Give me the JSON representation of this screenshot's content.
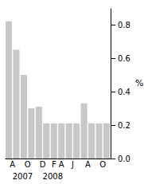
{
  "chart_data": {
    "type": "bar",
    "categories": [
      "A",
      null,
      "O",
      null,
      "D",
      null,
      "F",
      "A",
      "J",
      null,
      "A",
      null,
      "O",
      null
    ],
    "values": [
      0.82,
      0.65,
      0.5,
      0.3,
      0.31,
      0.21,
      0.21,
      0.21,
      0.21,
      0.21,
      0.33,
      0.21,
      0.21,
      0.21
    ],
    "color": "#c8c8c8",
    "ylabel": "%",
    "ylim": [
      0,
      0.9
    ],
    "yticks": [
      {
        "value": 0,
        "label": "0.0"
      },
      0.2,
      0.4,
      0.6,
      0.8
    ],
    "annotations": [
      {
        "text": "2007",
        "x": 0
      },
      {
        "text": "2008",
        "x": 4
      }
    ],
    "grid": false
  }
}
